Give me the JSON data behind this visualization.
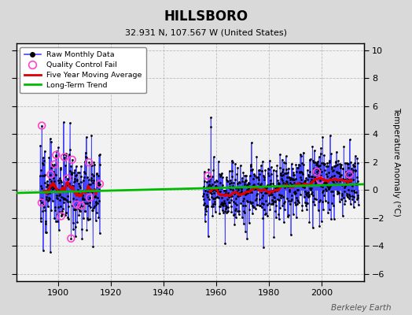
{
  "title": "HILLSBORO",
  "subtitle": "32.931 N, 107.567 W (United States)",
  "ylabel": "Temperature Anomaly (°C)",
  "credit": "Berkeley Earth",
  "ylim": [
    -6.5,
    10.5
  ],
  "yticks": [
    -6,
    -4,
    -2,
    0,
    2,
    4,
    6,
    8,
    10
  ],
  "xlim": [
    1884,
    2016
  ],
  "xticks": [
    1900,
    1920,
    1940,
    1960,
    1980,
    2000
  ],
  "bg_color": "#d9d9d9",
  "plot_bg_color": "#f2f2f2",
  "line_color": "#4444ff",
  "dot_color": "#000000",
  "ma_color": "#dd0000",
  "trend_color": "#00bb00",
  "qc_color": "#ff44cc",
  "early_period_start": 1893,
  "early_period_end": 1915,
  "second_cluster_start": 1904,
  "second_cluster_end": 1915,
  "main_period_start": 1955,
  "main_period_end": 2013,
  "data_seed": 12
}
